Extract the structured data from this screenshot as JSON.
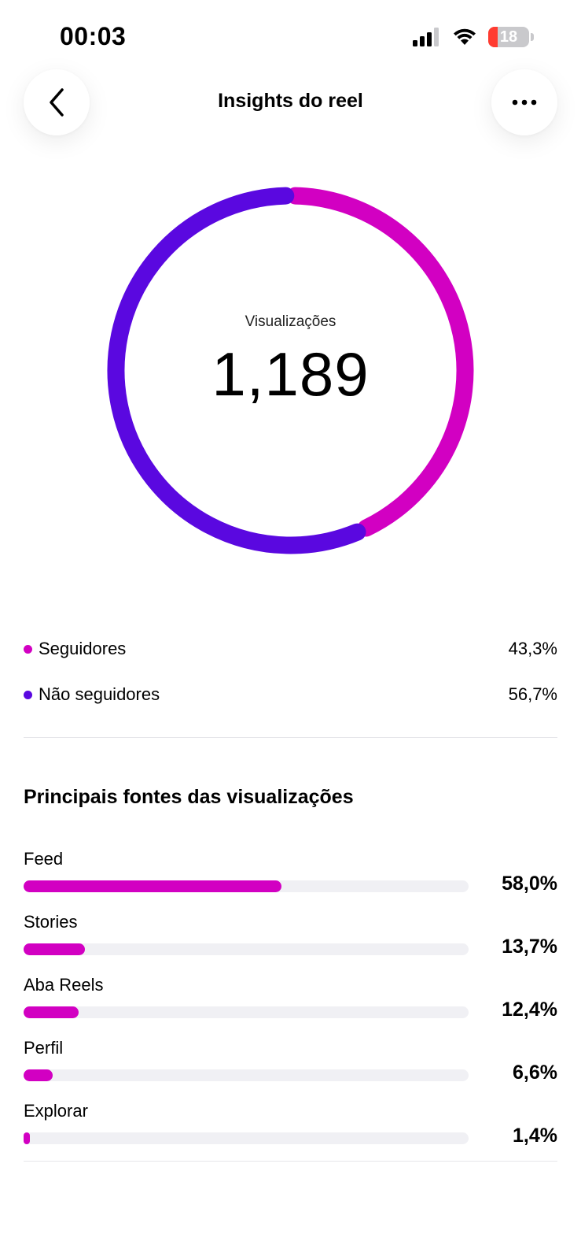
{
  "status_bar": {
    "time": "00:03",
    "battery_level": "18",
    "icons": [
      "cellular-signal-icon",
      "wifi-icon",
      "battery-icon"
    ]
  },
  "header": {
    "title": "Insights do reel",
    "back_icon": "chevron-left-icon",
    "more_icon": "more-horizontal-icon"
  },
  "views": {
    "label": "Visualizações",
    "total": "1,189"
  },
  "colors": {
    "followers": "#d200c2",
    "non_followers": "#5a08e0",
    "track": "#f0f0f4"
  },
  "chart_data": {
    "type": "pie",
    "categories": [
      "Seguidores",
      "Não seguidores"
    ],
    "values": [
      43.3,
      56.7
    ]
  },
  "legend": [
    {
      "label": "Seguidores",
      "value": "43,3%",
      "color": "#d200c2"
    },
    {
      "label": "Não seguidores",
      "value": "56,7%",
      "color": "#5a08e0"
    }
  ],
  "sources": {
    "title": "Principais fontes das visualizações",
    "items": [
      {
        "label": "Feed",
        "value": "58,0%",
        "fraction": 0.58
      },
      {
        "label": "Stories",
        "value": "13,7%",
        "fraction": 0.137
      },
      {
        "label": "Aba Reels",
        "value": "12,4%",
        "fraction": 0.124
      },
      {
        "label": "Perfil",
        "value": "6,6%",
        "fraction": 0.066
      },
      {
        "label": "Explorar",
        "value": "1,4%",
        "fraction": 0.014
      }
    ]
  }
}
